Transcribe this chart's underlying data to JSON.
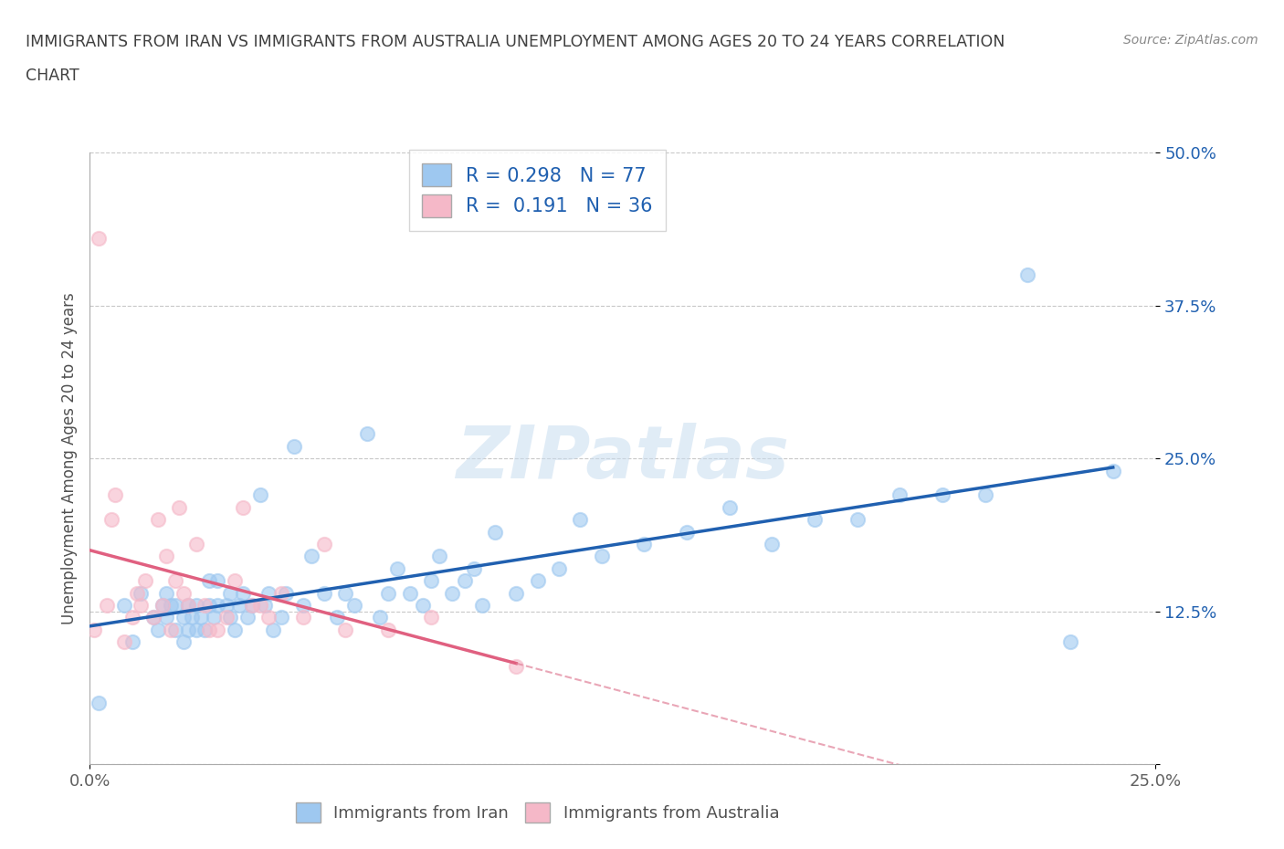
{
  "title_line1": "IMMIGRANTS FROM IRAN VS IMMIGRANTS FROM AUSTRALIA UNEMPLOYMENT AMONG AGES 20 TO 24 YEARS CORRELATION",
  "title_line2": "CHART",
  "source": "Source: ZipAtlas.com",
  "ylabel": "Unemployment Among Ages 20 to 24 years",
  "xlim": [
    0.0,
    0.25
  ],
  "ylim": [
    0.0,
    0.5
  ],
  "xticks": [
    0.0,
    0.25
  ],
  "yticks": [
    0.0,
    0.125,
    0.25,
    0.375,
    0.5
  ],
  "xticklabels": [
    "0.0%",
    "25.0%"
  ],
  "yticklabels": [
    "",
    "12.5%",
    "25.0%",
    "37.5%",
    "50.0%"
  ],
  "iran_R": 0.298,
  "iran_N": 77,
  "aus_R": 0.191,
  "aus_N": 36,
  "iran_color": "#9ec8f0",
  "aus_color": "#f5b8c8",
  "iran_line_color": "#2060b0",
  "aus_line_color": "#e06080",
  "aus_dash_color": "#e08098",
  "watermark": "ZIPatlas",
  "grid_color": "#c8c8c8",
  "iran_x": [
    0.002,
    0.008,
    0.01,
    0.012,
    0.015,
    0.016,
    0.017,
    0.018,
    0.018,
    0.019,
    0.02,
    0.02,
    0.022,
    0.022,
    0.023,
    0.023,
    0.024,
    0.025,
    0.025,
    0.026,
    0.027,
    0.028,
    0.028,
    0.029,
    0.03,
    0.03,
    0.032,
    0.033,
    0.033,
    0.034,
    0.035,
    0.036,
    0.037,
    0.038,
    0.04,
    0.041,
    0.042,
    0.043,
    0.045,
    0.046,
    0.048,
    0.05,
    0.052,
    0.055,
    0.058,
    0.06,
    0.062,
    0.065,
    0.068,
    0.07,
    0.072,
    0.075,
    0.078,
    0.08,
    0.082,
    0.085,
    0.088,
    0.09,
    0.092,
    0.095,
    0.1,
    0.105,
    0.11,
    0.115,
    0.12,
    0.13,
    0.14,
    0.15,
    0.16,
    0.17,
    0.18,
    0.19,
    0.2,
    0.21,
    0.22,
    0.23,
    0.24
  ],
  "iran_y": [
    0.05,
    0.13,
    0.1,
    0.14,
    0.12,
    0.11,
    0.13,
    0.12,
    0.14,
    0.13,
    0.11,
    0.13,
    0.1,
    0.12,
    0.11,
    0.13,
    0.12,
    0.11,
    0.13,
    0.12,
    0.11,
    0.13,
    0.15,
    0.12,
    0.13,
    0.15,
    0.13,
    0.14,
    0.12,
    0.11,
    0.13,
    0.14,
    0.12,
    0.13,
    0.22,
    0.13,
    0.14,
    0.11,
    0.12,
    0.14,
    0.26,
    0.13,
    0.17,
    0.14,
    0.12,
    0.14,
    0.13,
    0.27,
    0.12,
    0.14,
    0.16,
    0.14,
    0.13,
    0.15,
    0.17,
    0.14,
    0.15,
    0.16,
    0.13,
    0.19,
    0.14,
    0.15,
    0.16,
    0.2,
    0.17,
    0.18,
    0.19,
    0.21,
    0.18,
    0.2,
    0.2,
    0.22,
    0.22,
    0.22,
    0.4,
    0.1,
    0.24
  ],
  "aus_x": [
    0.001,
    0.002,
    0.004,
    0.005,
    0.006,
    0.008,
    0.01,
    0.011,
    0.012,
    0.013,
    0.015,
    0.016,
    0.017,
    0.018,
    0.019,
    0.02,
    0.021,
    0.022,
    0.023,
    0.025,
    0.027,
    0.028,
    0.03,
    0.032,
    0.034,
    0.036,
    0.038,
    0.04,
    0.042,
    0.045,
    0.05,
    0.055,
    0.06,
    0.07,
    0.08,
    0.1
  ],
  "aus_y": [
    0.11,
    0.43,
    0.13,
    0.2,
    0.22,
    0.1,
    0.12,
    0.14,
    0.13,
    0.15,
    0.12,
    0.2,
    0.13,
    0.17,
    0.11,
    0.15,
    0.21,
    0.14,
    0.13,
    0.18,
    0.13,
    0.11,
    0.11,
    0.12,
    0.15,
    0.21,
    0.13,
    0.13,
    0.12,
    0.14,
    0.12,
    0.18,
    0.11,
    0.11,
    0.12,
    0.08
  ]
}
